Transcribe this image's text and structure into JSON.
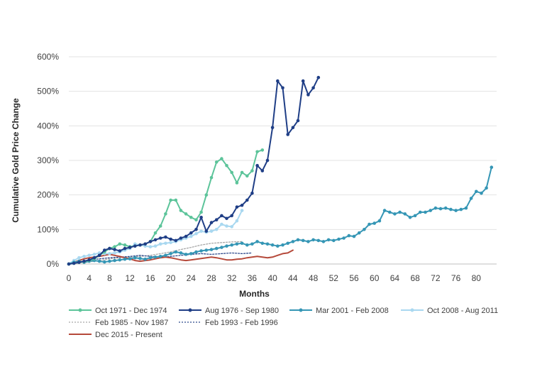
{
  "chart_data": {
    "type": "line",
    "title": "",
    "xlabel": "Months",
    "ylabel": "Cumulative Gold Price Change",
    "xlim": [
      0,
      84
    ],
    "ylim": [
      0,
      600
    ],
    "x_ticks": [
      "0",
      "4",
      "8",
      "12",
      "16",
      "20",
      "24",
      "28",
      "32",
      "36",
      "40",
      "44",
      "48",
      "52",
      "56",
      "60",
      "64",
      "68",
      "72",
      "76",
      "80"
    ],
    "y_ticks": [
      "0%",
      "100%",
      "200%",
      "300%",
      "400%",
      "500%",
      "600%"
    ],
    "grid": "horizontal",
    "legend_position": "bottom",
    "series": [
      {
        "name": "Oct 1971 - Dec 1974",
        "color": "#5CC49A",
        "style": "solid-markers",
        "x": [
          0,
          1,
          2,
          3,
          4,
          5,
          6,
          7,
          8,
          9,
          10,
          11,
          12,
          13,
          14,
          15,
          16,
          17,
          18,
          19,
          20,
          21,
          22,
          23,
          24,
          25,
          26,
          27,
          28,
          29,
          30,
          31,
          32,
          33,
          34,
          35,
          36,
          37,
          38
        ],
        "y": [
          0,
          2,
          5,
          7,
          10,
          15,
          25,
          35,
          45,
          50,
          58,
          55,
          50,
          52,
          55,
          58,
          65,
          90,
          110,
          145,
          185,
          185,
          155,
          145,
          135,
          128,
          150,
          200,
          250,
          295,
          305,
          285,
          265,
          235,
          265,
          255,
          270,
          325,
          330
        ]
      },
      {
        "name": "Aug 1976 - Sep 1980",
        "color": "#1F3E86",
        "style": "solid-markers",
        "x": [
          0,
          1,
          2,
          3,
          4,
          5,
          6,
          7,
          8,
          9,
          10,
          11,
          12,
          13,
          14,
          15,
          16,
          17,
          18,
          19,
          20,
          21,
          22,
          23,
          24,
          25,
          26,
          27,
          28,
          29,
          30,
          31,
          32,
          33,
          34,
          35,
          36,
          37,
          38,
          39,
          40,
          41,
          42,
          43,
          44,
          45,
          46,
          47,
          48,
          49
        ],
        "y": [
          0,
          2,
          5,
          8,
          12,
          18,
          25,
          40,
          45,
          42,
          38,
          45,
          48,
          52,
          55,
          58,
          65,
          70,
          75,
          78,
          72,
          68,
          75,
          80,
          90,
          100,
          135,
          95,
          120,
          128,
          140,
          132,
          140,
          165,
          170,
          185,
          205,
          285,
          270,
          300,
          395,
          530,
          510,
          375,
          395,
          415,
          530,
          490,
          510,
          540
        ]
      },
      {
        "name": "Mar 2001 - Feb 2008",
        "color": "#3596B5",
        "style": "solid-markers",
        "x": [
          0,
          1,
          2,
          3,
          4,
          5,
          6,
          7,
          8,
          9,
          10,
          11,
          12,
          13,
          14,
          15,
          16,
          17,
          18,
          19,
          20,
          21,
          22,
          23,
          24,
          25,
          26,
          27,
          28,
          29,
          30,
          31,
          32,
          33,
          34,
          35,
          36,
          37,
          38,
          39,
          40,
          41,
          42,
          43,
          44,
          45,
          46,
          47,
          48,
          49,
          50,
          51,
          52,
          53,
          54,
          55,
          56,
          57,
          58,
          59,
          60,
          61,
          62,
          63,
          64,
          65,
          66,
          67,
          68,
          69,
          70,
          71,
          72,
          73,
          74,
          75,
          76,
          77,
          78,
          79,
          80,
          81,
          82,
          83
        ],
        "y": [
          0,
          5,
          8,
          5,
          8,
          10,
          8,
          6,
          8,
          10,
          12,
          14,
          15,
          18,
          16,
          14,
          18,
          20,
          22,
          25,
          30,
          35,
          32,
          28,
          30,
          35,
          38,
          40,
          42,
          45,
          48,
          52,
          55,
          58,
          60,
          55,
          58,
          65,
          60,
          58,
          55,
          52,
          55,
          60,
          65,
          70,
          68,
          65,
          70,
          68,
          65,
          70,
          68,
          72,
          75,
          82,
          80,
          90,
          100,
          115,
          118,
          125,
          155,
          150,
          145,
          150,
          145,
          135,
          140,
          150,
          150,
          155,
          162,
          160,
          162,
          158,
          155,
          158,
          162,
          190,
          210,
          205,
          220,
          280
        ]
      },
      {
        "name": "Oct 2008 - Aug 2011",
        "color": "#A9D8F0",
        "style": "solid-markers",
        "x": [
          0,
          1,
          2,
          3,
          4,
          5,
          6,
          7,
          8,
          9,
          10,
          11,
          12,
          13,
          14,
          15,
          16,
          17,
          18,
          19,
          20,
          21,
          22,
          23,
          24,
          25,
          26,
          27,
          28,
          29,
          30,
          31,
          32,
          33,
          34
        ],
        "y": [
          0,
          10,
          18,
          22,
          25,
          28,
          32,
          30,
          30,
          32,
          35,
          40,
          45,
          58,
          55,
          52,
          50,
          52,
          58,
          60,
          62,
          65,
          70,
          75,
          80,
          88,
          95,
          92,
          95,
          100,
          115,
          110,
          108,
          125,
          155
        ]
      },
      {
        "name": "Feb 1985 - Nov 1987",
        "color": "#A8A8A8",
        "style": "dotted",
        "x": [
          0,
          2,
          4,
          6,
          8,
          10,
          12,
          14,
          16,
          18,
          20,
          22,
          24,
          26,
          28,
          30,
          32,
          34
        ],
        "y": [
          0,
          3,
          6,
          10,
          15,
          18,
          20,
          22,
          25,
          30,
          35,
          42,
          48,
          55,
          60,
          62,
          64,
          65
        ]
      },
      {
        "name": "Feb 1993 - Feb 1996",
        "color": "#2E4A8C",
        "style": "dotted",
        "x": [
          0,
          2,
          4,
          6,
          8,
          10,
          12,
          14,
          16,
          18,
          20,
          22,
          24,
          26,
          28,
          30,
          32,
          34,
          36
        ],
        "y": [
          0,
          5,
          12,
          15,
          18,
          20,
          22,
          25,
          22,
          20,
          22,
          25,
          28,
          30,
          28,
          30,
          32,
          30,
          32
        ]
      },
      {
        "name": "Dec 2015 - Present",
        "color": "#B5493A",
        "style": "solid",
        "x": [
          0,
          1,
          2,
          3,
          4,
          5,
          6,
          7,
          8,
          9,
          10,
          11,
          12,
          13,
          14,
          15,
          16,
          17,
          18,
          19,
          20,
          21,
          22,
          23,
          24,
          25,
          26,
          27,
          28,
          29,
          30,
          31,
          32,
          33,
          34,
          35,
          36,
          37,
          38,
          39,
          40,
          41,
          42,
          43,
          44
        ],
        "y": [
          0,
          5,
          10,
          15,
          18,
          20,
          22,
          25,
          28,
          25,
          22,
          18,
          15,
          10,
          8,
          10,
          12,
          15,
          18,
          20,
          18,
          15,
          12,
          10,
          12,
          14,
          16,
          18,
          20,
          18,
          15,
          12,
          12,
          14,
          15,
          18,
          20,
          22,
          20,
          18,
          20,
          25,
          30,
          32,
          40
        ]
      }
    ]
  }
}
